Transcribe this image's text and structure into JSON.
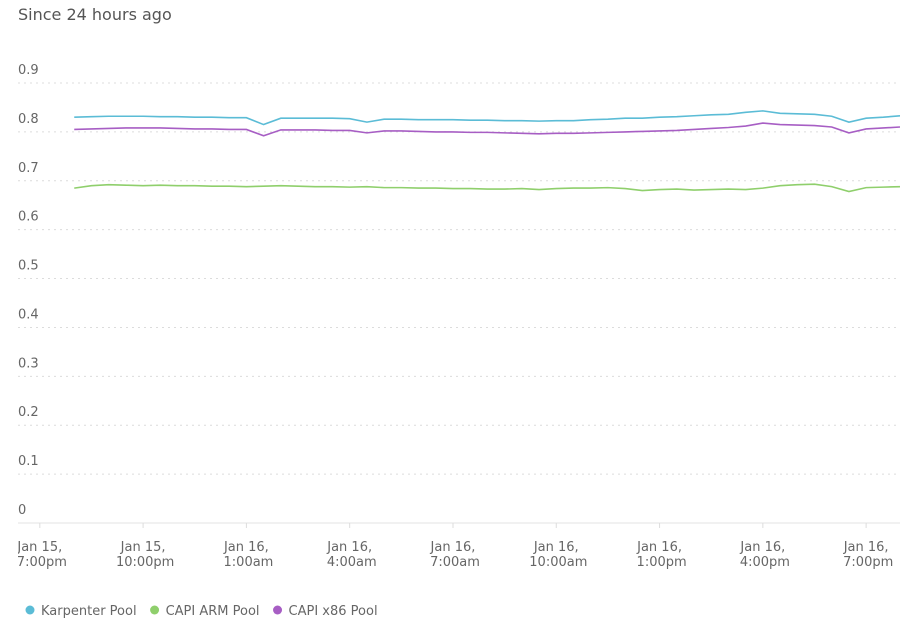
{
  "chart_data": {
    "type": "line",
    "title": "Since 24 hours ago",
    "x": [
      "Jan 15, 8:00pm",
      "Jan 15, 8:30pm",
      "Jan 15, 9:00pm",
      "Jan 15, 9:30pm",
      "Jan 15, 10:00pm",
      "Jan 15, 10:30pm",
      "Jan 15, 11:00pm",
      "Jan 15, 11:30pm",
      "Jan 16, 12:00am",
      "Jan 16, 12:30am",
      "Jan 16, 1:00am",
      "Jan 16, 1:30am",
      "Jan 16, 2:00am",
      "Jan 16, 2:30am",
      "Jan 16, 3:00am",
      "Jan 16, 3:30am",
      "Jan 16, 4:00am",
      "Jan 16, 4:30am",
      "Jan 16, 5:00am",
      "Jan 16, 5:30am",
      "Jan 16, 6:00am",
      "Jan 16, 6:30am",
      "Jan 16, 7:00am",
      "Jan 16, 7:30am",
      "Jan 16, 8:00am",
      "Jan 16, 8:30am",
      "Jan 16, 9:00am",
      "Jan 16, 9:30am",
      "Jan 16, 10:00am",
      "Jan 16, 10:30am",
      "Jan 16, 11:00am",
      "Jan 16, 11:30am",
      "Jan 16, 12:00pm",
      "Jan 16, 12:30pm",
      "Jan 16, 1:00pm",
      "Jan 16, 1:30pm",
      "Jan 16, 2:00pm",
      "Jan 16, 2:30pm",
      "Jan 16, 3:00pm",
      "Jan 16, 3:30pm",
      "Jan 16, 4:00pm",
      "Jan 16, 4:30pm",
      "Jan 16, 5:00pm",
      "Jan 16, 5:30pm",
      "Jan 16, 6:00pm",
      "Jan 16, 6:30pm",
      "Jan 16, 7:00pm",
      "Jan 16, 7:30pm",
      "Jan 16, 7:59pm"
    ],
    "series": [
      {
        "name": "Karpenter Pool",
        "color": "#5bbcd6",
        "values": [
          0.83,
          0.831,
          0.832,
          0.832,
          0.832,
          0.831,
          0.831,
          0.83,
          0.83,
          0.829,
          0.829,
          0.815,
          0.828,
          0.828,
          0.828,
          0.828,
          0.827,
          0.82,
          0.826,
          0.826,
          0.825,
          0.825,
          0.825,
          0.824,
          0.824,
          0.823,
          0.823,
          0.822,
          0.823,
          0.823,
          0.825,
          0.826,
          0.828,
          0.828,
          0.83,
          0.831,
          0.833,
          0.835,
          0.836,
          0.84,
          0.843,
          0.838,
          0.837,
          0.836,
          0.832,
          0.82,
          0.828,
          0.83,
          0.833
        ]
      },
      {
        "name": "CAPI ARM Pool",
        "color": "#8fcf6c",
        "values": [
          0.685,
          0.69,
          0.692,
          0.691,
          0.69,
          0.691,
          0.69,
          0.69,
          0.689,
          0.689,
          0.688,
          0.689,
          0.69,
          0.689,
          0.688,
          0.688,
          0.687,
          0.688,
          0.686,
          0.686,
          0.685,
          0.685,
          0.684,
          0.684,
          0.683,
          0.683,
          0.684,
          0.682,
          0.684,
          0.685,
          0.685,
          0.686,
          0.684,
          0.68,
          0.682,
          0.683,
          0.681,
          0.682,
          0.683,
          0.682,
          0.685,
          0.69,
          0.692,
          0.693,
          0.688,
          0.678,
          0.686,
          0.687,
          0.688
        ]
      },
      {
        "name": "CAPI x86 Pool",
        "color": "#a75ec4",
        "values": [
          0.805,
          0.806,
          0.807,
          0.808,
          0.808,
          0.808,
          0.807,
          0.806,
          0.806,
          0.805,
          0.805,
          0.792,
          0.804,
          0.804,
          0.804,
          0.803,
          0.803,
          0.798,
          0.802,
          0.802,
          0.801,
          0.8,
          0.8,
          0.799,
          0.799,
          0.798,
          0.797,
          0.796,
          0.797,
          0.797,
          0.798,
          0.799,
          0.8,
          0.801,
          0.802,
          0.803,
          0.805,
          0.807,
          0.809,
          0.812,
          0.818,
          0.815,
          0.814,
          0.813,
          0.81,
          0.798,
          0.806,
          0.808,
          0.81
        ]
      }
    ],
    "xlim": [
      "Jan 15, 6:22pm",
      "Jan 16, 7:59pm"
    ],
    "xticks": [
      "Jan 15, 7:00pm",
      "Jan 15, 10:00pm",
      "Jan 16, 1:00am",
      "Jan 16, 4:00am",
      "Jan 16, 7:00am",
      "Jan 16, 10:00am",
      "Jan 16, 1:00pm",
      "Jan 16, 4:00pm",
      "Jan 16, 7:00pm"
    ],
    "ylim": [
      0,
      0.9
    ],
    "yticks": [
      0,
      0.1,
      0.2,
      0.3,
      0.4,
      0.5,
      0.6,
      0.7,
      0.8,
      0.9
    ],
    "grid": true
  }
}
